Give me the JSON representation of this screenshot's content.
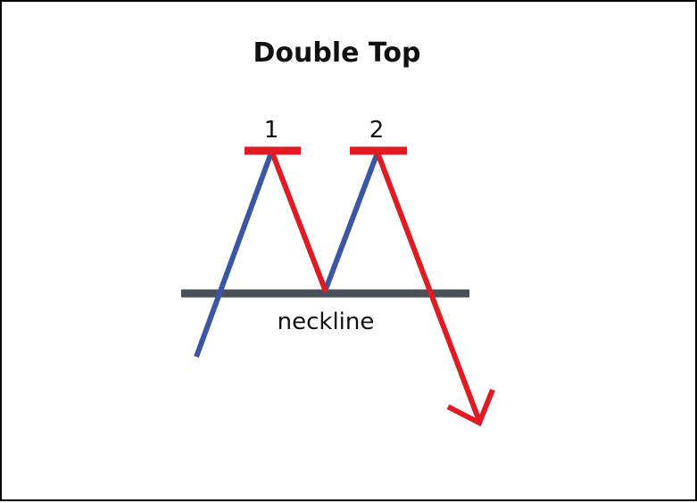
{
  "diagram": {
    "title": "Double Top",
    "peak_labels": [
      "1",
      "2"
    ],
    "neckline_label": "neckline",
    "colors": {
      "rise": "#3a56a5",
      "fall": "#e01b24",
      "neckline": "#4a505a",
      "text": "#111111"
    }
  }
}
